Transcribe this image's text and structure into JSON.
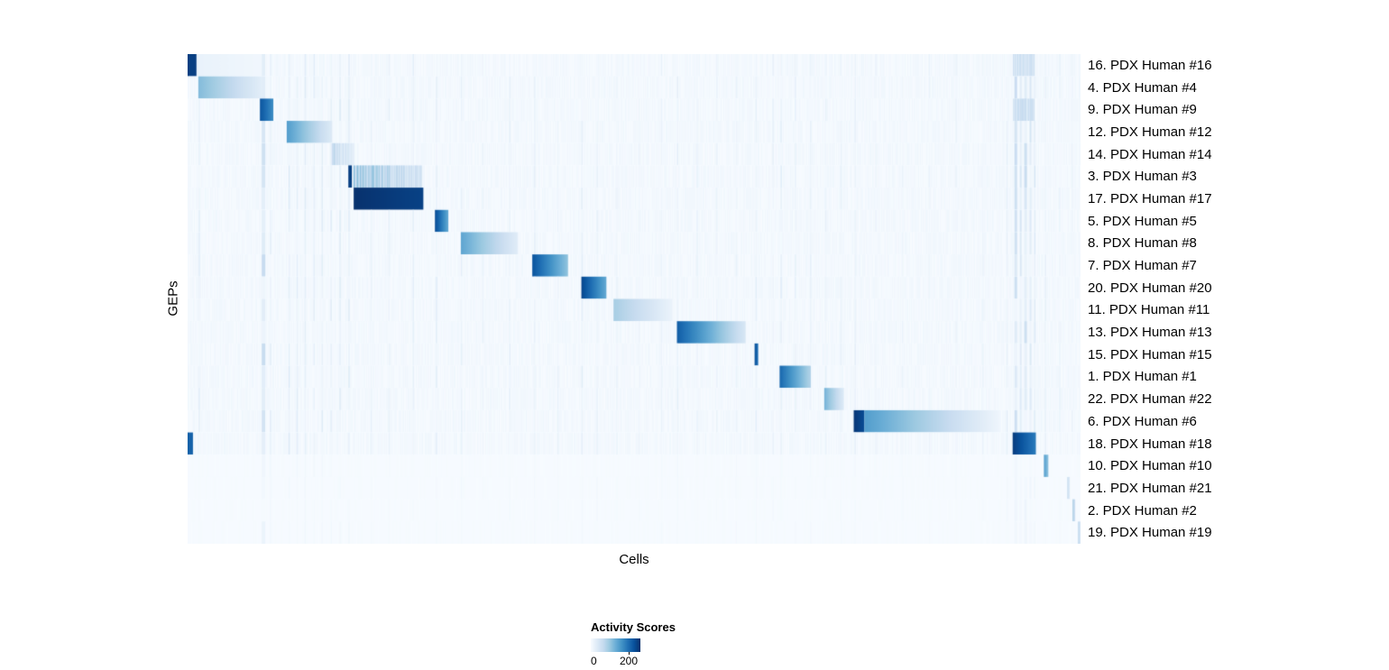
{
  "chart_data": {
    "type": "heatmap",
    "xlabel": "Cells",
    "ylabel": "GEPs",
    "colormap": "Blues",
    "colormap_stops": [
      "#f7fbff",
      "#deebf7",
      "#c6dbef",
      "#9ecae1",
      "#6baed6",
      "#4292c6",
      "#2171b5",
      "#08519c",
      "#08306b"
    ],
    "colorbar": {
      "title": "Activity Scores",
      "tick_labels": [
        "0",
        "200"
      ],
      "tick_values": [
        0,
        200
      ],
      "scale_max": 260
    },
    "rows": [
      {
        "label": "16. PDX Human #16",
        "noise_scale": 1,
        "blocks": [
          {
            "s": 0.0,
            "e": 0.01,
            "v0": 245,
            "v1": 245
          },
          {
            "s": 0.01,
            "e": 0.083,
            "v0": 18,
            "v1": 8
          },
          {
            "s": 0.925,
            "e": 0.948,
            "v0": 55,
            "v1": 55,
            "st": true
          }
        ]
      },
      {
        "label": "4. PDX Human #4",
        "noise_scale": 1,
        "blocks": [
          {
            "s": 0.012,
            "e": 0.084,
            "v0": 115,
            "v1": 25
          }
        ]
      },
      {
        "label": "9. PDX Human #9",
        "noise_scale": 1,
        "blocks": [
          {
            "s": 0.081,
            "e": 0.096,
            "v0": 225,
            "v1": 165
          },
          {
            "s": 0.925,
            "e": 0.948,
            "v0": 65,
            "v1": 65,
            "st": true
          }
        ]
      },
      {
        "label": "12. PDX Human #12",
        "noise_scale": 1,
        "blocks": [
          {
            "s": 0.111,
            "e": 0.162,
            "v0": 150,
            "v1": 32
          }
        ]
      },
      {
        "label": "14. PDX Human #14",
        "noise_scale": 1,
        "blocks": [
          {
            "s": 0.162,
            "e": 0.186,
            "v0": 75,
            "v1": 28,
            "st": true
          }
        ]
      },
      {
        "label": "3. PDX Human #3",
        "noise_scale": 1,
        "blocks": [
          {
            "s": 0.18,
            "e": 0.184,
            "v0": 245,
            "v1": 245
          },
          {
            "s": 0.186,
            "e": 0.262,
            "v0": 115,
            "v1": 50,
            "st": true
          }
        ]
      },
      {
        "label": "17. PDX Human #17",
        "noise_scale": 1,
        "blocks": [
          {
            "s": 0.186,
            "e": 0.264,
            "v0": 258,
            "v1": 242
          }
        ]
      },
      {
        "label": "5. PDX Human #5",
        "noise_scale": 1,
        "blocks": [
          {
            "s": 0.277,
            "e": 0.292,
            "v0": 235,
            "v1": 135
          }
        ]
      },
      {
        "label": "8. PDX Human #8",
        "noise_scale": 1,
        "blocks": [
          {
            "s": 0.306,
            "e": 0.37,
            "v0": 140,
            "v1": 28
          }
        ]
      },
      {
        "label": "7. PDX Human #7",
        "noise_scale": 1,
        "blocks": [
          {
            "s": 0.386,
            "e": 0.426,
            "v0": 225,
            "v1": 105
          }
        ]
      },
      {
        "label": "20. PDX Human #20",
        "noise_scale": 1,
        "blocks": [
          {
            "s": 0.441,
            "e": 0.469,
            "v0": 240,
            "v1": 135
          }
        ]
      },
      {
        "label": "11. PDX Human #11",
        "noise_scale": 1,
        "blocks": [
          {
            "s": 0.477,
            "e": 0.543,
            "v0": 90,
            "v1": 16
          }
        ]
      },
      {
        "label": "13. PDX Human #13",
        "noise_scale": 1,
        "blocks": [
          {
            "s": 0.548,
            "e": 0.625,
            "v0": 215,
            "v1": 40
          }
        ]
      },
      {
        "label": "15. PDX Human #15",
        "noise_scale": 1,
        "blocks": [
          {
            "s": 0.635,
            "e": 0.639,
            "v0": 230,
            "v1": 195
          }
        ]
      },
      {
        "label": "1. PDX Human #1",
        "noise_scale": 1,
        "blocks": [
          {
            "s": 0.663,
            "e": 0.698,
            "v0": 205,
            "v1": 80
          }
        ]
      },
      {
        "label": "22. PDX Human #22",
        "noise_scale": 1,
        "blocks": [
          {
            "s": 0.713,
            "e": 0.735,
            "v0": 125,
            "v1": 32
          }
        ]
      },
      {
        "label": "6. PDX Human #6",
        "noise_scale": 1,
        "blocks": [
          {
            "s": 0.746,
            "e": 0.758,
            "v0": 252,
            "v1": 232
          },
          {
            "s": 0.758,
            "e": 0.91,
            "v0": 150,
            "v1": 10
          }
        ]
      },
      {
        "label": "18. PDX Human #18",
        "noise_scale": 1,
        "blocks": [
          {
            "s": 0.0,
            "e": 0.006,
            "v0": 210,
            "v1": 210
          },
          {
            "s": 0.924,
            "e": 0.95,
            "v0": 248,
            "v1": 185
          }
        ]
      },
      {
        "label": "10. PDX Human #10",
        "noise_scale": 0.25,
        "blocks": [
          {
            "s": 0.959,
            "e": 0.964,
            "v0": 150,
            "v1": 105
          }
        ]
      },
      {
        "label": "21. PDX Human #21",
        "noise_scale": 0.25,
        "blocks": [
          {
            "s": 0.985,
            "e": 0.988,
            "v0": 55,
            "v1": 35
          }
        ]
      },
      {
        "label": "2. PDX Human #2",
        "noise_scale": 0.25,
        "blocks": [
          {
            "s": 0.991,
            "e": 0.994,
            "v0": 85,
            "v1": 55
          }
        ]
      },
      {
        "label": "19. PDX Human #19",
        "noise_scale": 0.25,
        "blocks": [
          {
            "s": 0.997,
            "e": 1.0,
            "v0": 65,
            "v1": 40
          }
        ]
      }
    ],
    "noise_bands": [
      [
        0.012,
        0.002,
        18
      ],
      [
        0.083,
        0.004,
        45
      ],
      [
        0.092,
        0.002,
        22
      ],
      [
        0.113,
        0.0015,
        28
      ],
      [
        0.122,
        0.0015,
        22
      ],
      [
        0.131,
        0.0015,
        26
      ],
      [
        0.141,
        0.0015,
        22
      ],
      [
        0.15,
        0.0015,
        28
      ],
      [
        0.16,
        0.0015,
        22
      ],
      [
        0.17,
        0.0015,
        26
      ],
      [
        0.18,
        0.0015,
        24
      ],
      [
        0.205,
        0.0015,
        14
      ],
      [
        0.225,
        0.0015,
        16
      ],
      [
        0.252,
        0.0015,
        20
      ],
      [
        0.278,
        0.0015,
        22
      ],
      [
        0.306,
        0.0015,
        18
      ],
      [
        0.33,
        0.0015,
        14
      ],
      [
        0.36,
        0.0015,
        16
      ],
      [
        0.388,
        0.0015,
        18
      ],
      [
        0.414,
        0.0015,
        16
      ],
      [
        0.441,
        0.0015,
        20
      ],
      [
        0.458,
        0.0015,
        18
      ],
      [
        0.48,
        0.0015,
        14
      ],
      [
        0.505,
        0.0015,
        12
      ],
      [
        0.53,
        0.0015,
        14
      ],
      [
        0.548,
        0.0015,
        18
      ],
      [
        0.57,
        0.0015,
        16
      ],
      [
        0.592,
        0.0015,
        14
      ],
      [
        0.614,
        0.0015,
        16
      ],
      [
        0.636,
        0.0015,
        20
      ],
      [
        0.655,
        0.0015,
        16
      ],
      [
        0.664,
        0.0015,
        22
      ],
      [
        0.68,
        0.0015,
        18
      ],
      [
        0.697,
        0.0015,
        16
      ],
      [
        0.714,
        0.0015,
        20
      ],
      [
        0.731,
        0.0015,
        16
      ],
      [
        0.747,
        0.0015,
        18
      ],
      [
        0.77,
        0.0015,
        12
      ],
      [
        0.8,
        0.0015,
        12
      ],
      [
        0.83,
        0.0015,
        12
      ],
      [
        0.86,
        0.0015,
        12
      ],
      [
        0.89,
        0.0015,
        12
      ],
      [
        0.917,
        0.0015,
        18
      ],
      [
        0.926,
        0.003,
        42
      ],
      [
        0.932,
        0.002,
        36
      ],
      [
        0.937,
        0.003,
        44
      ],
      [
        0.943,
        0.002,
        38
      ],
      [
        0.948,
        0.0015,
        30
      ],
      [
        0.96,
        0.0015,
        20
      ],
      [
        0.976,
        0.0015,
        14
      ],
      [
        0.99,
        0.0015,
        12
      ]
    ]
  }
}
